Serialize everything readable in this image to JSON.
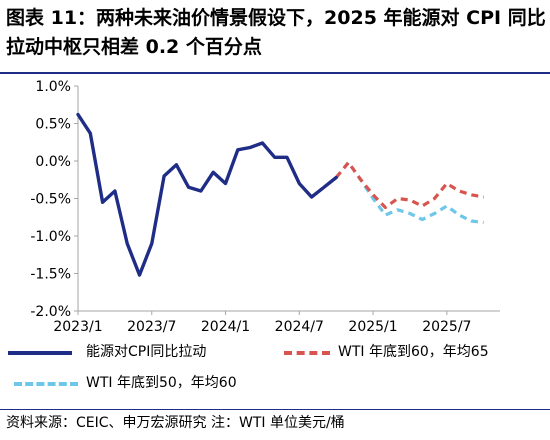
{
  "title": "图表 11：两种未来油价情景假设下，2025 年能源对 CPI 同比拉动中枢只相差 0.2 个百分点",
  "source": "资料来源：CEIC、申万宏源研究    注：WTI 单位美元/桶",
  "colors": {
    "title_rule": "#1f2d86",
    "actual": "#1f2d86",
    "wti60": "#d9534f",
    "wti50": "#6ec6e8",
    "axis": "#a6a6a6"
  },
  "chart_data": {
    "type": "line",
    "y_ticks": [
      "1.0%",
      "0.5%",
      "0.0%",
      "-0.5%",
      "-1.0%",
      "-1.5%",
      "-2.0%"
    ],
    "y_tick_values": [
      1.0,
      0.5,
      0.0,
      -0.5,
      -1.0,
      -1.5,
      -2.0
    ],
    "ylim": [
      -2.0,
      1.0
    ],
    "x_tick_labels": [
      "2023/1",
      "2023/7",
      "2024/1",
      "2024/7",
      "2025/1",
      "2025/7"
    ],
    "x_tick_index": [
      0,
      6,
      12,
      18,
      24,
      30
    ],
    "x_count": 35,
    "grid": false,
    "legend_position": "bottom",
    "series": [
      {
        "name": "能源对CPI同比拉动",
        "style": "solid",
        "color_key": "actual",
        "start_index": 0,
        "values": [
          0.62,
          0.37,
          -0.55,
          -0.4,
          -1.1,
          -1.52,
          -1.1,
          -0.2,
          -0.05,
          -0.35,
          -0.4,
          -0.15,
          -0.3,
          0.15,
          0.18,
          0.24,
          0.05,
          0.05,
          -0.3,
          -0.48,
          -0.35,
          -0.22
        ]
      },
      {
        "name": "WTI 年底到60，年均65",
        "style": "dashed",
        "color_key": "wti60",
        "start_index": 21,
        "values": [
          -0.22,
          -0.02,
          -0.25,
          -0.45,
          -0.62,
          -0.5,
          -0.52,
          -0.6,
          -0.5,
          -0.3,
          -0.4,
          -0.45,
          -0.48
        ]
      },
      {
        "name": "WTI 年底到50，年均60",
        "style": "dashed",
        "color_key": "wti50",
        "start_index": 21,
        "values": [
          -0.22,
          -0.02,
          -0.25,
          -0.5,
          -0.72,
          -0.65,
          -0.7,
          -0.78,
          -0.7,
          -0.6,
          -0.72,
          -0.8,
          -0.82
        ]
      }
    ]
  }
}
